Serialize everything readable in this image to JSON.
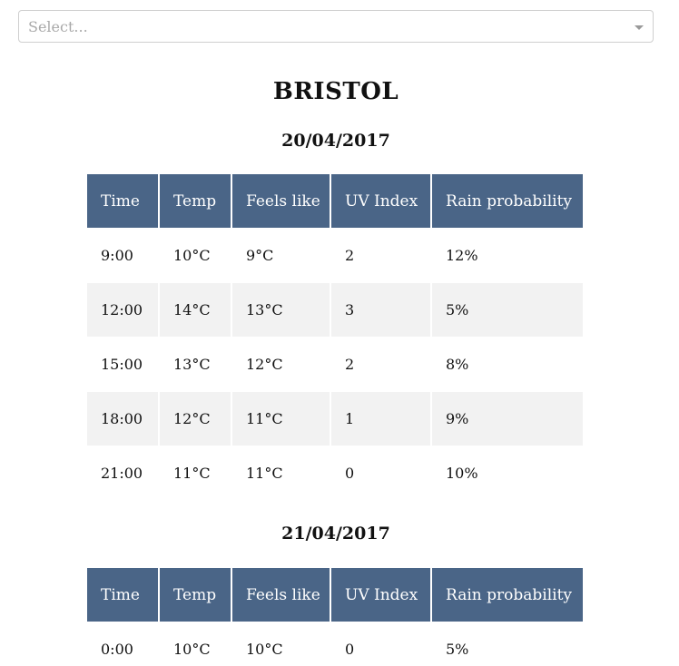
{
  "select": {
    "placeholder": "Select..."
  },
  "city": "BRISTOL",
  "columns": [
    "Time",
    "Temp",
    "Feels like",
    "UV Index",
    "Rain probability"
  ],
  "days": [
    {
      "date": "20/04/2017",
      "rows": [
        {
          "time": "9:00",
          "temp": "10°C",
          "feels": "9°C",
          "uv": "2",
          "rain": "12%"
        },
        {
          "time": "12:00",
          "temp": "14°C",
          "feels": "13°C",
          "uv": "3",
          "rain": "5%"
        },
        {
          "time": "15:00",
          "temp": "13°C",
          "feels": "12°C",
          "uv": "2",
          "rain": "8%"
        },
        {
          "time": "18:00",
          "temp": "12°C",
          "feels": "11°C",
          "uv": "1",
          "rain": "9%"
        },
        {
          "time": "21:00",
          "temp": "11°C",
          "feels": "11°C",
          "uv": "0",
          "rain": "10%"
        }
      ]
    },
    {
      "date": "21/04/2017",
      "rows": [
        {
          "time": "0:00",
          "temp": "10°C",
          "feels": "10°C",
          "uv": "0",
          "rain": "5%"
        }
      ]
    }
  ],
  "colors": {
    "header_bg": "#4a6587",
    "stripe_bg": "#f2f2f2",
    "placeholder": "#a9a9a9"
  },
  "icons": {
    "select_arrow": "chevron-down-icon"
  }
}
